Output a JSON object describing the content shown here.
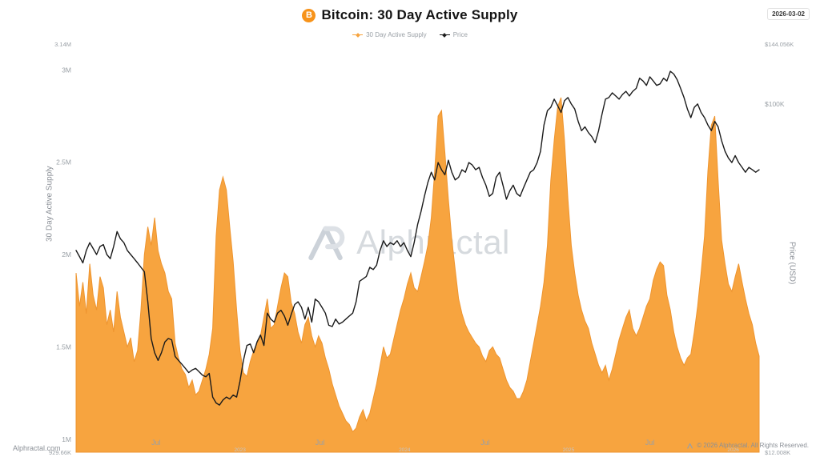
{
  "header": {
    "title": "Bitcoin: 30 Day Active Supply",
    "coin_symbol": "B",
    "date": "2026-03-02"
  },
  "legend": [
    {
      "label": "30 Day Active Supply",
      "color": "#F7A43F"
    },
    {
      "label": "Price",
      "color": "#1B1B1B"
    }
  ],
  "watermark": {
    "monogram": "AP",
    "text": "Alphractal"
  },
  "footer": {
    "site": "Alphractal.com",
    "copyright": "© 2026 Alphractal. All Rights Reserved."
  },
  "colors": {
    "brand_orange": "#F7931A",
    "supply_fill": "#F7A43F",
    "supply_stroke": "#EE9530",
    "price_line": "#1B1B1B",
    "tick_text": "#9aa0a6",
    "year_text": "#c2c6cc"
  },
  "chart_data": {
    "type": "area+line",
    "title": "Bitcoin: 30 Day Active Supply",
    "grid": false,
    "legend_position": "top-center",
    "x_axis": {
      "ticks": [
        {
          "t": 0.117,
          "label": "Jul"
        },
        {
          "t": 0.357,
          "label": "Jul"
        },
        {
          "t": 0.599,
          "label": "Jul"
        },
        {
          "t": 0.84,
          "label": "Jul"
        }
      ],
      "year_ticks": [
        {
          "t": 0.24,
          "label": "2023"
        },
        {
          "t": 0.481,
          "label": "2024"
        },
        {
          "t": 0.721,
          "label": "2025"
        },
        {
          "t": 0.962,
          "label": "2026"
        }
      ]
    },
    "left_axis": {
      "label": "30 Day Active Supply",
      "scale": "linear",
      "min": 0.92966,
      "max": 3.14,
      "unit": "BTC (millions)",
      "ticks": [
        {
          "value": 3.14,
          "label": "3.14M",
          "edge": true
        },
        {
          "value": 3.0,
          "label": "3M"
        },
        {
          "value": 2.5,
          "label": "2.5M"
        },
        {
          "value": 2.0,
          "label": "2M"
        },
        {
          "value": 1.5,
          "label": "1.5M"
        },
        {
          "value": 1.0,
          "label": "1M"
        },
        {
          "value": 0.92966,
          "label": "929.66K",
          "edge": true
        }
      ]
    },
    "right_axis": {
      "label": "Price (USD)",
      "scale": "log",
      "min": 12.008,
      "max": 144.056,
      "unit": "USD (thousands)",
      "ticks": [
        {
          "value": 144.056,
          "label": "$144.056K",
          "edge": true
        },
        {
          "value": 100,
          "label": "$100K"
        },
        {
          "value": 12.008,
          "label": "$12.008K",
          "edge": true
        }
      ]
    },
    "series": [
      {
        "name": "30 Day Active Supply",
        "type": "area",
        "axis": "left",
        "unit": "M BTC",
        "color": "#F7A43F",
        "stroke": "#EE9530",
        "t_start": 0,
        "t_step": 0.005,
        "values": [
          1.9,
          1.72,
          1.85,
          1.68,
          1.95,
          1.78,
          1.7,
          1.88,
          1.82,
          1.62,
          1.7,
          1.58,
          1.8,
          1.66,
          1.58,
          1.5,
          1.55,
          1.42,
          1.48,
          1.7,
          2.0,
          2.15,
          2.05,
          2.2,
          2.02,
          1.95,
          1.9,
          1.8,
          1.76,
          1.52,
          1.44,
          1.38,
          1.35,
          1.28,
          1.32,
          1.24,
          1.26,
          1.32,
          1.38,
          1.46,
          1.6,
          2.1,
          2.35,
          2.42,
          2.35,
          2.15,
          1.96,
          1.7,
          1.48,
          1.36,
          1.34,
          1.42,
          1.48,
          1.52,
          1.56,
          1.66,
          1.76,
          1.6,
          1.62,
          1.72,
          1.82,
          1.9,
          1.88,
          1.74,
          1.68,
          1.58,
          1.52,
          1.62,
          1.66,
          1.56,
          1.5,
          1.56,
          1.52,
          1.44,
          1.38,
          1.3,
          1.24,
          1.18,
          1.14,
          1.1,
          1.08,
          1.04,
          1.06,
          1.12,
          1.16,
          1.1,
          1.14,
          1.22,
          1.3,
          1.4,
          1.5,
          1.44,
          1.46,
          1.54,
          1.62,
          1.7,
          1.76,
          1.84,
          1.9,
          1.82,
          1.8,
          1.88,
          1.96,
          2.05,
          2.2,
          2.45,
          2.75,
          2.78,
          2.55,
          2.3,
          2.08,
          1.92,
          1.76,
          1.68,
          1.62,
          1.58,
          1.55,
          1.52,
          1.5,
          1.45,
          1.42,
          1.48,
          1.5,
          1.46,
          1.44,
          1.38,
          1.32,
          1.28,
          1.26,
          1.22,
          1.22,
          1.26,
          1.32,
          1.42,
          1.52,
          1.62,
          1.72,
          1.85,
          2.05,
          2.4,
          2.62,
          2.8,
          2.85,
          2.62,
          2.3,
          2.05,
          1.9,
          1.78,
          1.7,
          1.64,
          1.6,
          1.52,
          1.46,
          1.4,
          1.36,
          1.4,
          1.32,
          1.38,
          1.46,
          1.54,
          1.6,
          1.66,
          1.7,
          1.6,
          1.56,
          1.6,
          1.66,
          1.72,
          1.76,
          1.86,
          1.92,
          1.96,
          1.94,
          1.78,
          1.7,
          1.58,
          1.5,
          1.44,
          1.4,
          1.44,
          1.46,
          1.58,
          1.72,
          1.9,
          2.1,
          2.45,
          2.7,
          2.75,
          2.4,
          2.08,
          1.95,
          1.84,
          1.8,
          1.88,
          1.95,
          1.85,
          1.76,
          1.68,
          1.62,
          1.52,
          1.45
        ]
      },
      {
        "name": "Price",
        "type": "line",
        "axis": "right",
        "unit": "K USD",
        "color": "#1B1B1B",
        "t_start": 0,
        "t_step": 0.005,
        "values": [
          41,
          39.5,
          38,
          41,
          43,
          41.5,
          40,
          42,
          42.5,
          40,
          39,
          42,
          46,
          44,
          43,
          41,
          40,
          39,
          38,
          37,
          36,
          30,
          24,
          22,
          21,
          22,
          23.5,
          24,
          23.8,
          21.5,
          21,
          20.5,
          20,
          19.5,
          19.8,
          20,
          19.6,
          19.2,
          19,
          19.4,
          16.8,
          16.2,
          16,
          16.5,
          16.8,
          16.6,
          17,
          16.8,
          18.5,
          21,
          23,
          23.2,
          22,
          23.5,
          24.5,
          23,
          28,
          27,
          26.5,
          28,
          28.5,
          27.5,
          26,
          27.8,
          29.5,
          30,
          29,
          27,
          29,
          26.5,
          30.5,
          30,
          29,
          28,
          26,
          25.8,
          27,
          26.2,
          26.5,
          27,
          27.5,
          28,
          30,
          34,
          34.5,
          35,
          37,
          36.5,
          37.5,
          41,
          43.5,
          42,
          43,
          42.5,
          43.5,
          42,
          43,
          41,
          39.5,
          43,
          48,
          52,
          57,
          62,
          66,
          63,
          70,
          67,
          65,
          71,
          66,
          63,
          64,
          67,
          66,
          70,
          69,
          67,
          68,
          64,
          61,
          57,
          58,
          64,
          66,
          61,
          56,
          59,
          61,
          58,
          57,
          60,
          63,
          66,
          67,
          70,
          75,
          88,
          96,
          98,
          103,
          99,
          95,
          102,
          104,
          100,
          97,
          90,
          85,
          87,
          84,
          82,
          79,
          85,
          94,
          103,
          104,
          107,
          105,
          103,
          106,
          108,
          105,
          108,
          110,
          117,
          115,
          112,
          118,
          115,
          112,
          113,
          117,
          115,
          122,
          120,
          116,
          110,
          104,
          97,
          92,
          98,
          100,
          95,
          92,
          88,
          85,
          90,
          87,
          80,
          75,
          72,
          70,
          73,
          70,
          68,
          66,
          68,
          67,
          66,
          67
        ]
      }
    ]
  }
}
